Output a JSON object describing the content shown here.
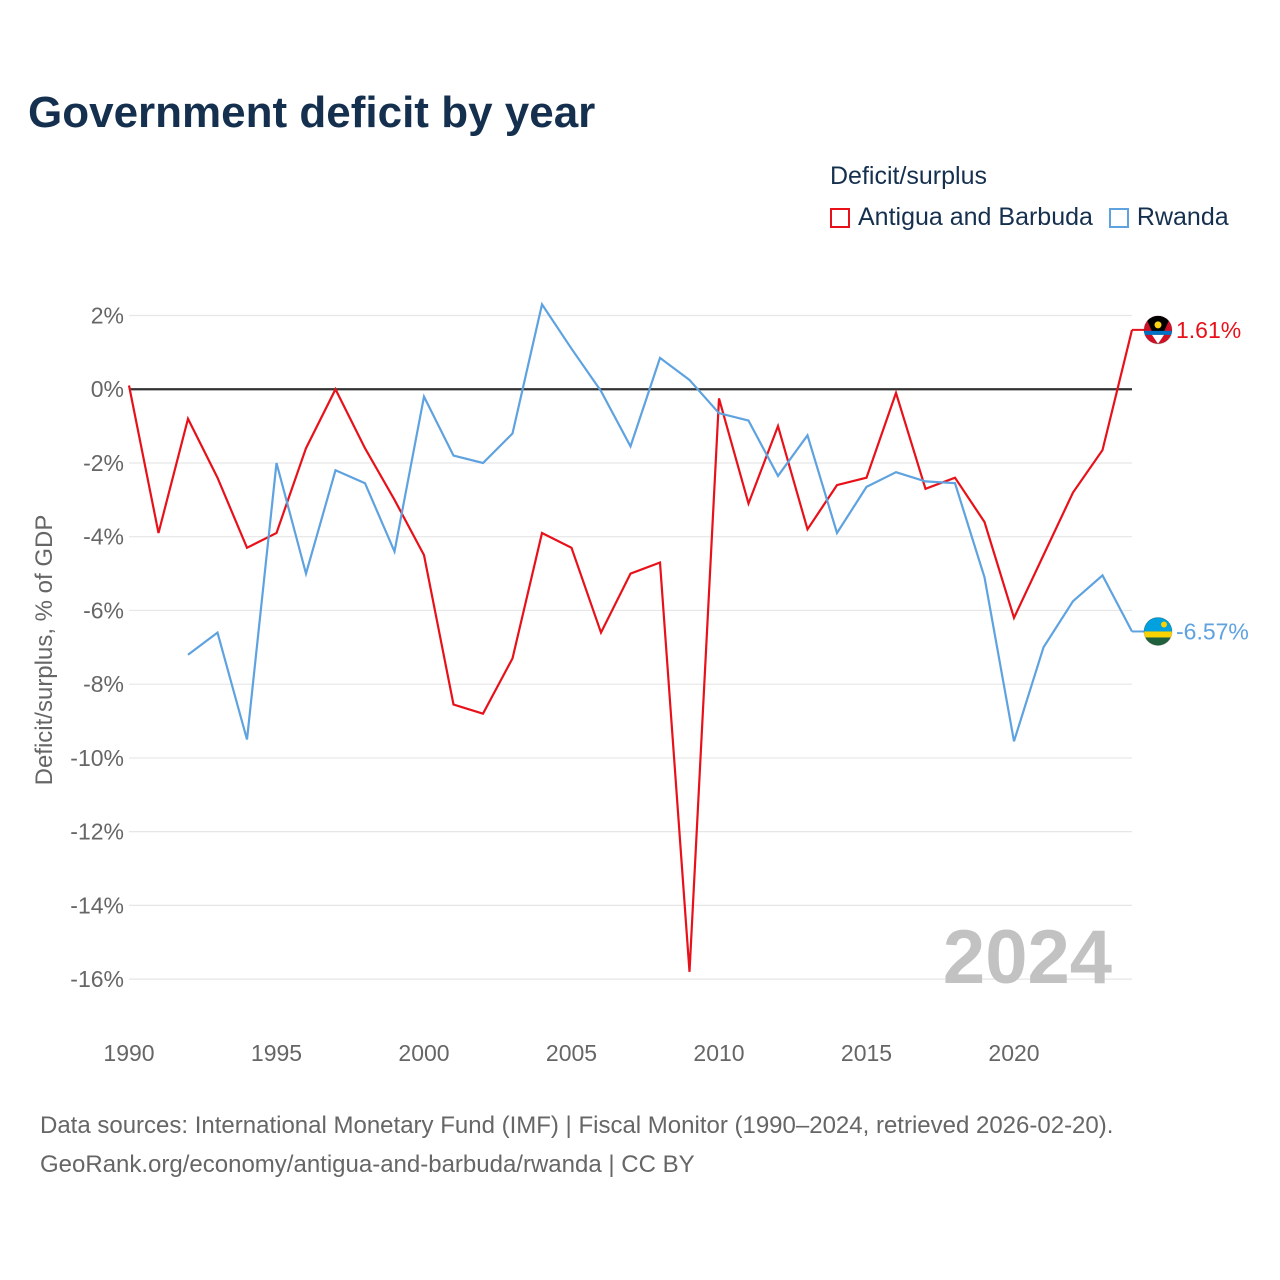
{
  "title": "Government deficit by year",
  "legend": {
    "title": "Deficit/surplus",
    "items": [
      {
        "label": "Antigua and Barbuda",
        "color": "#e8111a"
      },
      {
        "label": "Rwanda",
        "color": "#5ea2e0"
      }
    ]
  },
  "source": {
    "line1": "Data sources: International Monetary Fund (IMF) | Fiscal Monitor (1990–2024, retrieved 2026-02-20).",
    "line2": "GeoRank.org/economy/antigua-and-barbuda/rwanda | CC BY"
  },
  "chart_data": {
    "type": "line",
    "title": "Government deficit by year",
    "xlabel": "",
    "ylabel": "Deficit/surplus, % of GDP",
    "xlim": [
      1990,
      2024
    ],
    "ylim": [
      -17,
      2.8
    ],
    "x_ticks": [
      1990,
      1995,
      2000,
      2005,
      2010,
      2015,
      2020
    ],
    "y_ticks": [
      2,
      0,
      -2,
      -4,
      -6,
      -8,
      -10,
      -12,
      -14,
      -16
    ],
    "y_tick_labels": [
      "2%",
      "0%",
      "-2%",
      "-4%",
      "-6%",
      "-8%",
      "-10%",
      "-12%",
      "-14%",
      "-16%"
    ],
    "grid": true,
    "zero_line": true,
    "watermark_year": "2024",
    "series": [
      {
        "name": "Antigua and Barbuda",
        "color": "#e8111a",
        "end_label": "1.61%",
        "flag": "antigua-and-barbuda-flag-icon",
        "x": [
          1990,
          1991,
          1992,
          1993,
          1994,
          1995,
          1996,
          1997,
          1998,
          1999,
          2000,
          2001,
          2002,
          2003,
          2004,
          2005,
          2006,
          2007,
          2008,
          2009,
          2010,
          2011,
          2012,
          2013,
          2014,
          2015,
          2016,
          2017,
          2018,
          2019,
          2020,
          2021,
          2022,
          2023,
          2024
        ],
        "values": [
          0.1,
          -3.9,
          -0.8,
          -2.4,
          -4.3,
          -3.9,
          -1.6,
          0.0,
          -1.6,
          -3.0,
          -4.5,
          -8.55,
          -8.8,
          -7.3,
          -3.9,
          -4.3,
          -6.6,
          -5.0,
          -4.7,
          -15.8,
          -0.25,
          -3.1,
          -1.0,
          -3.8,
          -2.6,
          -2.4,
          -0.1,
          -2.7,
          -2.4,
          -3.6,
          -6.2,
          -4.5,
          -2.8,
          -1.65,
          1.61
        ]
      },
      {
        "name": "Rwanda",
        "color": "#5ea2e0",
        "end_label": "-6.57%",
        "flag": "rwanda-flag-icon",
        "x": [
          1992,
          1993,
          1994,
          1995,
          1996,
          1997,
          1998,
          1999,
          2000,
          2001,
          2002,
          2003,
          2004,
          2005,
          2006,
          2007,
          2008,
          2009,
          2010,
          2011,
          2012,
          2013,
          2014,
          2015,
          2016,
          2017,
          2018,
          2019,
          2020,
          2021,
          2022,
          2023,
          2024
        ],
        "values": [
          -7.2,
          -6.6,
          -9.5,
          -2.0,
          -5.0,
          -2.2,
          -2.55,
          -4.4,
          -0.2,
          -1.8,
          -2.0,
          -1.2,
          2.3,
          1.1,
          -0.05,
          -1.55,
          0.85,
          0.25,
          -0.65,
          -0.85,
          -2.35,
          -1.25,
          -3.9,
          -2.65,
          -2.25,
          -2.5,
          -2.55,
          -5.1,
          -9.55,
          -7.0,
          -5.75,
          -5.05,
          -6.57
        ]
      }
    ]
  }
}
